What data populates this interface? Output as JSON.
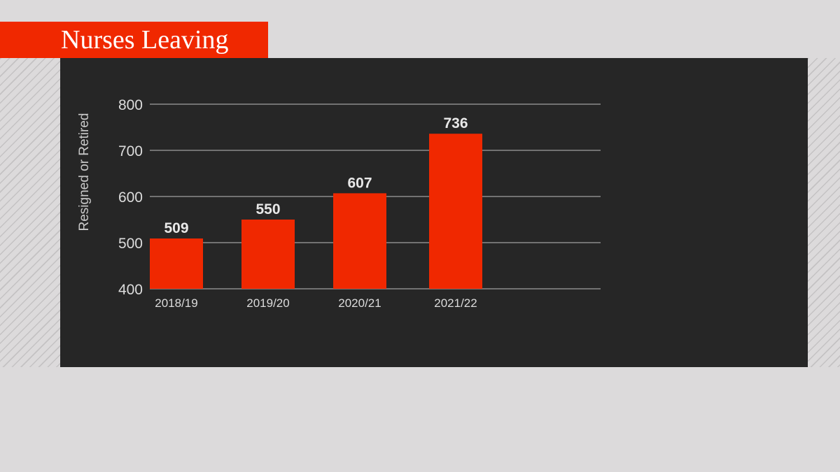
{
  "header": {
    "title": "Nurses Leaving"
  },
  "colors": {
    "accent": "#f02800",
    "panel_background": "#262626",
    "page_background": "#dcdadb"
  },
  "chart_data": {
    "type": "bar",
    "title": "",
    "xlabel": "",
    "ylabel": "Resigned or Retired",
    "categories": [
      "2018/19",
      "2019/20",
      "2020/21",
      "2021/22"
    ],
    "values": [
      509,
      550,
      607,
      736
    ],
    "data_labels": [
      "509",
      "550",
      "607",
      "736"
    ],
    "ylim": [
      400,
      800
    ],
    "yticks": [
      400,
      500,
      600,
      700,
      800
    ],
    "grid": true,
    "legend": "none",
    "bar_color": "#f02800"
  }
}
